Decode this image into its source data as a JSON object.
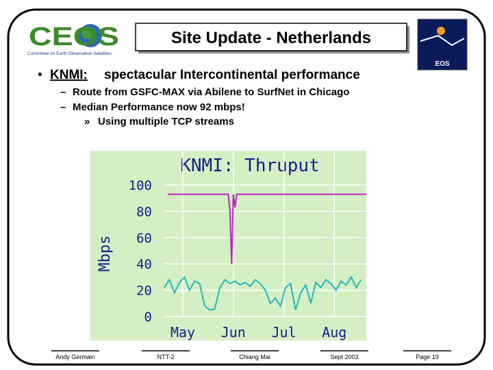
{
  "header": {
    "logo_text": "CEOS",
    "logo_subtitle": "Committee on Earth Observation Satellites",
    "title": "Site Update - Netherlands",
    "badge": "EOS"
  },
  "bullet": {
    "label": "KNMI:",
    "text": "spectacular Intercontinental performance"
  },
  "sub_bullets": [
    "Route from GSFC-MAX via Abilene to SurfNet in Chicago",
    "Median Performance now 92 mbps!"
  ],
  "sub_sub_bullets": [
    "Using multiple TCP streams"
  ],
  "footer": [
    "Andy Germain",
    "NTT-2",
    "Chiang Mai",
    "Sept 2003",
    "Page 19"
  ],
  "chart_data": {
    "type": "line",
    "title": "KNMI: Thruput",
    "y_label": "Mbps",
    "xlim": [
      0,
      120
    ],
    "ylim": [
      0,
      125
    ],
    "xticks": [
      {
        "value": 11,
        "label": "May"
      },
      {
        "value": 41,
        "label": "Jun"
      },
      {
        "value": 71,
        "label": "Jul"
      },
      {
        "value": 101,
        "label": "Aug"
      }
    ],
    "yticks": [
      0,
      20,
      40,
      60,
      80,
      100
    ],
    "grid": true,
    "series": [
      {
        "color": "#c020c0",
        "x": [
          2,
          38,
          39,
          40,
          41,
          42,
          43,
          120
        ],
        "values": [
          93,
          93,
          80,
          40,
          93,
          83,
          93,
          93
        ]
      },
      {
        "color": "#20b8b8",
        "x": [
          0,
          3,
          6,
          9,
          12,
          15,
          18,
          21,
          24,
          27,
          30,
          33,
          36,
          39,
          42,
          45,
          48,
          51,
          54,
          57,
          60,
          63,
          66,
          69,
          72,
          75,
          78,
          81,
          84,
          87,
          90,
          93,
          96,
          99,
          102,
          105,
          108,
          111,
          114,
          117
        ],
        "values": [
          22,
          28,
          18,
          26,
          30,
          20,
          27,
          25,
          8,
          5,
          6,
          22,
          28,
          25,
          27,
          24,
          26,
          23,
          28,
          25,
          20,
          10,
          14,
          8,
          22,
          25,
          5,
          18,
          24,
          10,
          26,
          22,
          28,
          25,
          20,
          27,
          24,
          30,
          22,
          28
        ]
      }
    ]
  }
}
